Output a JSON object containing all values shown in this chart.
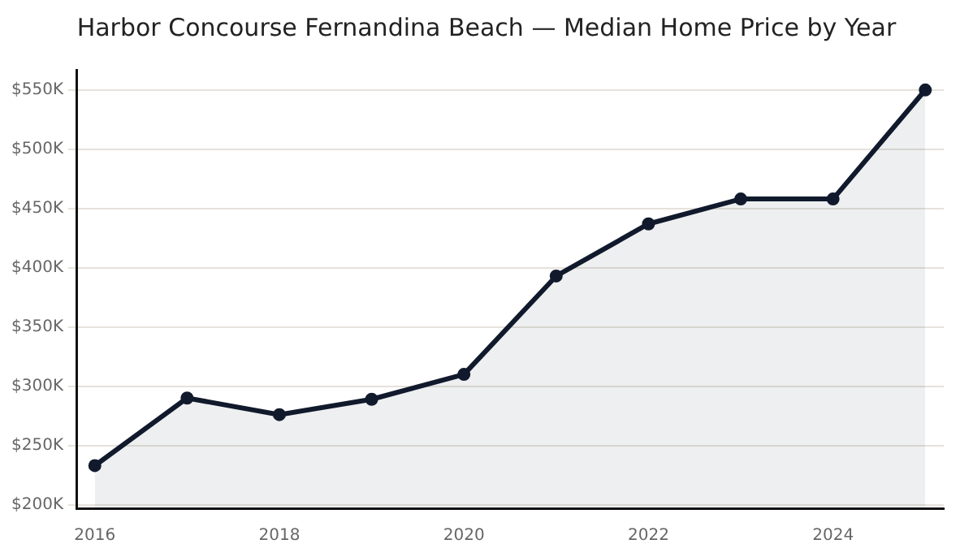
{
  "chart_data": {
    "type": "area",
    "title": "Harbor Concourse Fernandina Beach — Median Home Price by Year",
    "x": [
      2016,
      2017,
      2018,
      2019,
      2020,
      2021,
      2022,
      2023,
      2024,
      2025
    ],
    "series": [
      {
        "color": "#111a2c",
        "values": [
          233,
          290,
          276,
          289,
          310,
          393,
          437,
          458,
          458,
          550
        ]
      }
    ],
    "xlim": [
      2015.8,
      2025.2
    ],
    "xticks": [
      2016,
      2018,
      2020,
      2022,
      2024
    ],
    "ylim": [
      197,
      567
    ],
    "yticks": [
      {
        "value": 200,
        "label": "$200K"
      },
      {
        "value": 250,
        "label": "$250K"
      },
      {
        "value": 300,
        "label": "$300K"
      },
      {
        "value": 350,
        "label": "$350K"
      },
      {
        "value": 400,
        "label": "$400K"
      },
      {
        "value": 450,
        "label": "$450K"
      },
      {
        "value": 500,
        "label": "$500K"
      },
      {
        "value": 550,
        "label": "$550K"
      }
    ],
    "grid": "y",
    "legend": false,
    "marker": "circle",
    "line_style": "solid"
  }
}
